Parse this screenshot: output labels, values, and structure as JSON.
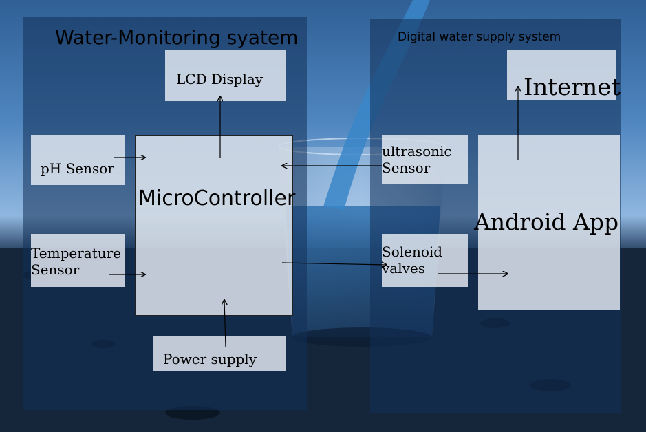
{
  "diagram": {
    "left_panel_title": "Water-Monitoring syatem",
    "right_panel_title": "Digital water supply system",
    "nodes": {
      "lcd_display": "LCD Display",
      "ph_sensor": "pH Sensor",
      "microcontroller": "MicroController",
      "temperature_sensor": "Temperature Sensor",
      "power_supply": "Power supply",
      "ultrasonic_sensor": "ultrasonic Sensor",
      "solenoid_valves": "Solenoid valves",
      "internet": "Internet",
      "android_app": "Android App"
    },
    "connections": [
      {
        "from": "ph_sensor",
        "to": "microcontroller"
      },
      {
        "from": "temperature_sensor",
        "to": "microcontroller"
      },
      {
        "from": "power_supply",
        "to": "microcontroller"
      },
      {
        "from": "microcontroller",
        "to": "lcd_display"
      },
      {
        "from": "ultrasonic_sensor",
        "to": "microcontroller"
      },
      {
        "from": "microcontroller",
        "to": "solenoid_valves"
      },
      {
        "from": "solenoid_valves",
        "to": "android_app"
      },
      {
        "from": "android_app",
        "to": "internet"
      }
    ]
  },
  "colors": {
    "panel": "#123058",
    "box": "#ecf1f8",
    "arrow": "#000000"
  }
}
